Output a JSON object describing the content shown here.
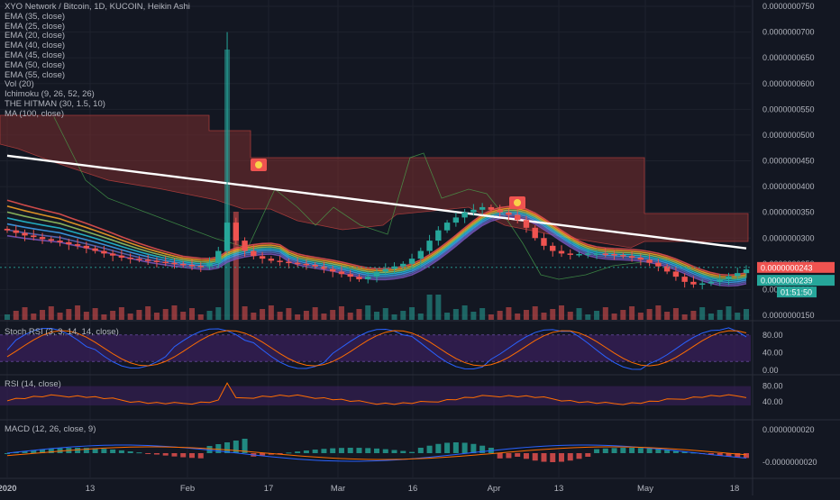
{
  "chart_data": [
    {
      "type": "candlestick",
      "title": "XYO Network / Bitcoin, 1D, KUCOIN, Heikin Ashi",
      "indicators": [
        "EMA (35, close)",
        "EMA (25, close)",
        "EMA (20, close)",
        "EMA (40, close)",
        "EMA (45, close)",
        "EMA (50, close)",
        "EMA (55, close)",
        "Vol (20)",
        "Ichimoku (9, 26, 52, 26)",
        "THE HITMAN (30, 1.5, 10)",
        "MA (100, close)"
      ],
      "x_ticks": [
        "2020",
        "13",
        "Feb",
        "17",
        "Mar",
        "16",
        "Apr",
        "13",
        "May",
        "18"
      ],
      "y_ticks": [
        "0.0000000750",
        "0.0000000700",
        "0.0000000650",
        "0.0000000600",
        "0.0000000550",
        "0.0000000500",
        "0.0000000450",
        "0.0000000400",
        "0.0000000350",
        "0.0000000300",
        "0.0000000250",
        "0.0000000200",
        "0.0000000150"
      ],
      "ylim": [
        1.5e-08,
        7.5e-08
      ],
      "last_price": "0.0000000243",
      "current_price": "0.0000000239",
      "countdown": "01:51:50",
      "price_path": [
        31.5,
        31.0,
        30.5,
        30.2,
        29.8,
        29.5,
        29.2,
        28.8,
        28.5,
        28.0,
        27.5,
        27.0,
        26.6,
        26.2,
        26.0,
        25.8,
        25.6,
        25.4,
        25.2,
        25.0,
        24.8,
        24.6,
        24.5,
        25.2,
        27.5,
        33.0,
        29.5,
        27.5,
        26.5,
        26.0,
        25.6,
        25.4,
        25.2,
        25.0,
        24.8,
        24.5,
        24.0,
        23.5,
        23.0,
        22.5,
        22.0,
        22.5,
        23.5,
        24.0,
        24.5,
        25.0,
        26.0,
        27.5,
        29.5,
        31.5,
        33.0,
        34.0,
        35.0,
        35.5,
        36.0,
        35.5,
        35.0,
        34.5,
        33.5,
        32.0,
        30.0,
        28.5,
        27.5,
        27.0,
        26.8,
        26.9,
        27.0,
        27.0,
        26.9,
        26.7,
        26.5,
        26.2,
        25.8,
        25.2,
        24.5,
        23.5,
        22.5,
        21.5,
        21.0,
        21.2,
        21.5,
        22.0,
        22.6,
        23.2,
        23.9
      ]
    },
    {
      "type": "line",
      "title": "Stoch RSI (3, 3, 14, 14, close)",
      "y_ticks": [
        "80.00",
        "40.00",
        "0.00"
      ],
      "ylim": [
        0,
        100
      ]
    },
    {
      "type": "line",
      "title": "RSI (14, close)",
      "y_ticks": [
        "80.00",
        "40.00"
      ],
      "ylim": [
        0,
        100
      ]
    },
    {
      "type": "bar",
      "title": "MACD (12, 26, close, 9)",
      "y_ticks": [
        "0.0000000020",
        "-0.0000000020"
      ]
    }
  ],
  "colors": {
    "background": "#131722",
    "grid": "#1e222d",
    "up": "#26a69a",
    "down": "#ef5350",
    "cloud": "#7a2e2e",
    "ma100": "#ffffff",
    "band": "#2a1f3d"
  }
}
